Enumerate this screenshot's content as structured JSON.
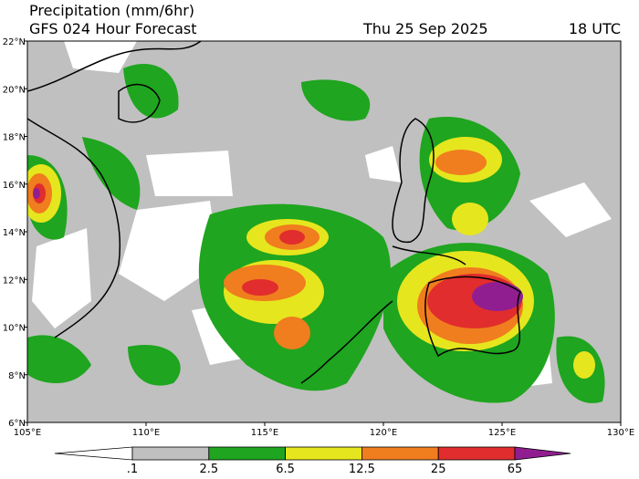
{
  "header": {
    "title": "Precipitation (mm/6hr)",
    "subtitle": "GFS 024 Hour Forecast",
    "date": "Thu 25 Sep 2025",
    "time": "18 UTC"
  },
  "axes": {
    "lat_labels": [
      "22°N",
      "20°N",
      "18°N",
      "16°N",
      "14°N",
      "12°N",
      "10°N",
      "8°N",
      "6°N"
    ],
    "lon_labels": [
      "105°E",
      "110°E",
      "115°E",
      "120°E",
      "125°E",
      "130°E"
    ]
  },
  "colorbar": {
    "levels": [
      {
        "value": 0.1,
        "label": ".1"
      },
      2.5,
      6.5,
      12.5,
      25,
      65
    ],
    "colors": [
      "#ffffff",
      "#c0c0c0",
      "#1fa51f",
      "#e6e61e",
      "#f07d1e",
      "#e12d2d",
      "#911e91"
    ]
  }
}
